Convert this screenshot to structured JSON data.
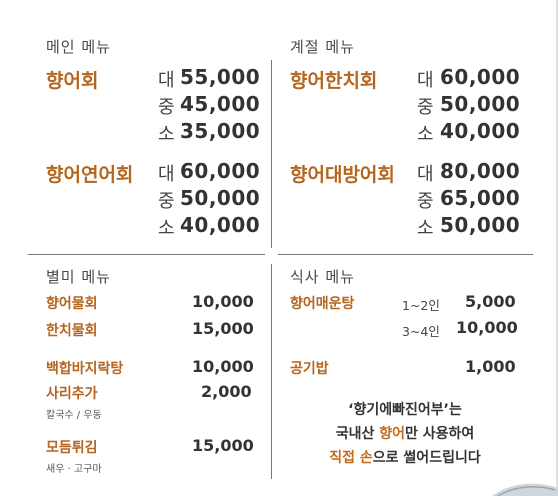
{
  "main": {
    "title": "메인 메뉴",
    "items": [
      {
        "name": "향어회",
        "sizes": [
          {
            "size": "대",
            "price": "55,000"
          },
          {
            "size": "중",
            "price": "45,000"
          },
          {
            "size": "소",
            "price": "35,000"
          }
        ]
      },
      {
        "name": "향어연어회",
        "sizes": [
          {
            "size": "대",
            "price": "60,000"
          },
          {
            "size": "중",
            "price": "50,000"
          },
          {
            "size": "소",
            "price": "40,000"
          }
        ]
      }
    ]
  },
  "seasonal": {
    "title": "계절 메뉴",
    "items": [
      {
        "name": "향어한치회",
        "sizes": [
          {
            "size": "대",
            "price": "60,000"
          },
          {
            "size": "중",
            "price": "50,000"
          },
          {
            "size": "소",
            "price": "40,000"
          }
        ]
      },
      {
        "name": "향어대방어회",
        "sizes": [
          {
            "size": "대",
            "price": "80,000"
          },
          {
            "size": "중",
            "price": "65,000"
          },
          {
            "size": "소",
            "price": "50,000"
          }
        ]
      }
    ]
  },
  "specialty": {
    "title": "별미 메뉴",
    "items": [
      {
        "name": "향어물회",
        "price": "10,000",
        "sub": ""
      },
      {
        "name": "한치물회",
        "price": "15,000",
        "sub": ""
      },
      {
        "name": "백합바지락탕",
        "price": "10,000",
        "sub": ""
      },
      {
        "name": "사리추가",
        "price": "2,000",
        "sub": "칼국수 / 우동"
      },
      {
        "name": "모듬튀김",
        "price": "15,000",
        "sub": "새우 · 고구마"
      }
    ]
  },
  "meal": {
    "title": "식사 메뉴",
    "items": [
      {
        "name": "향어매운탕",
        "options": [
          {
            "qty": "1~2인",
            "price": "5,000"
          },
          {
            "qty": "3~4인",
            "price": "10,000"
          }
        ]
      },
      {
        "name": "공기밥",
        "price": "1,000"
      }
    ]
  },
  "slogan": {
    "line1": "‘향기에빠진어부’는",
    "line2_pre": "국내산 ",
    "line2_hl": "향어",
    "line2_post": "만 사용하여",
    "line3_pre": "직접 ",
    "line3_hl": "손",
    "line3_post": "으로 썰어드립니다"
  },
  "colors": {
    "accent": "#b5651d",
    "text": "#333333",
    "divider": "#777777"
  }
}
